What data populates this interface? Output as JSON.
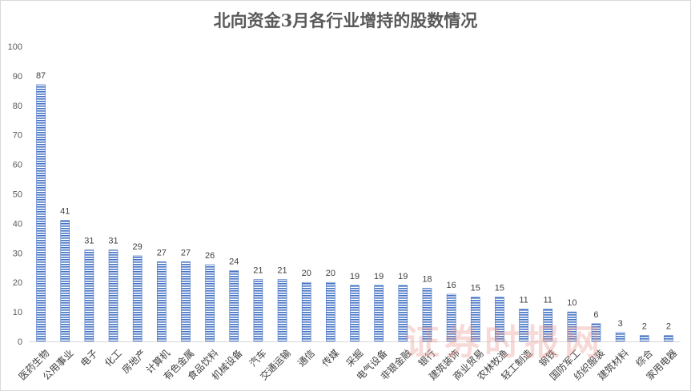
{
  "chart_data": {
    "type": "bar",
    "title": "北向资金3月各行业增持的股数情况",
    "categories": [
      "医药生物",
      "公用事业",
      "电子",
      "化工",
      "房地产",
      "计算机",
      "有色金属",
      "食品饮料",
      "机械设备",
      "汽车",
      "交通运输",
      "通信",
      "传媒",
      "采掘",
      "电气设备",
      "非银金融",
      "银行",
      "建筑装饰",
      "商业贸易",
      "农林牧渔",
      "轻工制造",
      "钢铁",
      "国防军工",
      "纺织服装",
      "建筑材料",
      "综合",
      "家用电器"
    ],
    "values": [
      87,
      41,
      31,
      31,
      29,
      27,
      27,
      26,
      24,
      21,
      21,
      20,
      20,
      19,
      19,
      19,
      18,
      16,
      15,
      15,
      11,
      11,
      10,
      6,
      3,
      2,
      2
    ],
    "ylim": [
      0,
      100
    ],
    "yticks": [
      0,
      10,
      20,
      30,
      40,
      50,
      60,
      70,
      80,
      90,
      100
    ],
    "grid": false,
    "legend": "none",
    "bar_color": "#8eaadb",
    "bar_stripe_color": "#4472c4"
  },
  "watermark": "证券时报网"
}
